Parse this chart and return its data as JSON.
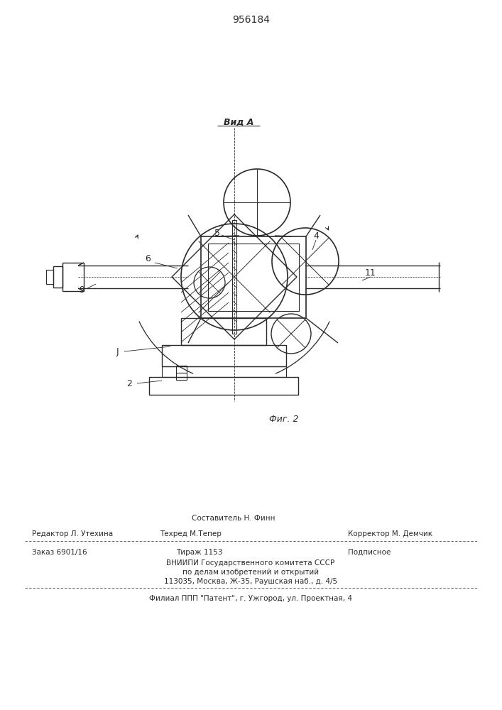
{
  "title": "956184",
  "fig_label": "Фиг. 2",
  "view_label": "Вид А",
  "background_color": "#ffffff",
  "line_color": "#2a2a2a",
  "footer": {
    "sestavitel_top": "Составитель Н. Финн",
    "redaktor": "Редактор Л. Утехина",
    "tehred": "Техред М.Тепер",
    "korrektor": "Корректор М. Демчик",
    "zakaz": "Заказ 6901/16",
    "tirazh": "Тираж 1153",
    "podpisnoe": "Подписное",
    "vnipi1": "ВНИИПИ Государственного комитета СССР",
    "vnipi2": "по делам изобретений и открытий",
    "vnipi3": "113035, Москва, Ж-35, Раушская наб., д. 4/5",
    "filial": "Филиал ППП \"Патент\", г. Ужгород, ул. Проектная, 4"
  }
}
